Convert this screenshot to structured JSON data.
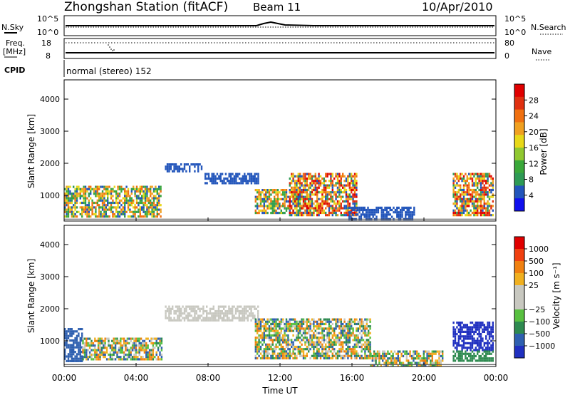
{
  "header": {
    "station_title": "Zhongshan Station (fitACF)",
    "beam": "Beam 11",
    "date": "10/Apr/2010"
  },
  "top_panels": {
    "nsky": {
      "label": "N.Sky",
      "tick_top": "10^5",
      "tick_bottom": "10^0"
    },
    "nsearch": {
      "label": "N.Search",
      "tick_top": "10^5",
      "tick_bottom": "10^0"
    },
    "freq": {
      "label_line1": "Freq.",
      "label_line2": "[MHz]",
      "tick_top": "18",
      "tick_bottom": "8"
    },
    "nave": {
      "label": "Nave",
      "tick_top": "80",
      "tick_bottom": "0"
    },
    "cpid": {
      "label": "CPID",
      "mode_text": "normal (stereo) 152"
    }
  },
  "chart_data": [
    {
      "type": "heatmap",
      "name": "power",
      "ylabel": "Slant Range [km]",
      "xlabel": "",
      "xlim": [
        0,
        24
      ],
      "ylim": [
        200,
        4600
      ],
      "yticks": [
        "1000",
        "2000",
        "3000",
        "4000"
      ],
      "colorbar": {
        "label": "Power [dB]",
        "ticks": [
          "4",
          "8",
          "12",
          "16",
          "20",
          "24",
          "28"
        ],
        "colors": [
          "#1010ee",
          "#2255bb",
          "#2e9a55",
          "#3aa83a",
          "#90c830",
          "#e8d818",
          "#f0a020",
          "#f07010",
          "#e03010",
          "#e00000"
        ]
      },
      "patches": [
        {
          "t": [
            0.0,
            5.4
          ],
          "r": [
            350,
            1300
          ],
          "c": "mix1"
        },
        {
          "t": [
            5.6,
            7.6
          ],
          "r": [
            1750,
            2000
          ],
          "c": "#2255bb"
        },
        {
          "t": [
            7.8,
            10.8
          ],
          "r": [
            1400,
            1700
          ],
          "c": "#2255bb"
        },
        {
          "t": [
            10.6,
            13.5
          ],
          "r": [
            450,
            1200
          ],
          "c": "mix1"
        },
        {
          "t": [
            12.5,
            16.3
          ],
          "r": [
            400,
            1700
          ],
          "c": "mix2"
        },
        {
          "t": [
            15.8,
            19.5
          ],
          "r": [
            250,
            650
          ],
          "c": "#2255bb"
        },
        {
          "t": [
            21.6,
            23.8
          ],
          "r": [
            400,
            1700
          ],
          "c": "mix2"
        }
      ]
    },
    {
      "type": "heatmap",
      "name": "velocity",
      "ylabel": "Slant Range [km]",
      "xlabel": "Time UT",
      "xlim": [
        0,
        24
      ],
      "ylim": [
        200,
        4600
      ],
      "xticks": [
        "00:00",
        "04:00",
        "08:00",
        "12:00",
        "16:00",
        "20:00",
        "00:00"
      ],
      "yticks": [
        "1000",
        "2000",
        "3000",
        "4000"
      ],
      "colorbar": {
        "label": "Velocity [m s⁻¹]",
        "ticks": [
          "1000",
          "500",
          "100",
          "25",
          "−25",
          "−100",
          "−500",
          "−1000"
        ],
        "colors": [
          "#2030c0",
          "#2f60b0",
          "#2e8a50",
          "#58c040",
          "#c8c8c0",
          "#c8c8c0",
          "#f0b020",
          "#f08010",
          "#f04010",
          "#e00000"
        ]
      },
      "patches": [
        {
          "t": [
            0.0,
            1.0
          ],
          "r": [
            400,
            1400
          ],
          "c": "#2f60b0"
        },
        {
          "t": [
            1.0,
            5.4
          ],
          "r": [
            400,
            1100
          ],
          "c": "mixv"
        },
        {
          "t": [
            5.6,
            10.8
          ],
          "r": [
            1650,
            2100
          ],
          "c": "#c8c8c0"
        },
        {
          "t": [
            10.6,
            17.0
          ],
          "r": [
            450,
            1700
          ],
          "c": "mixv"
        },
        {
          "t": [
            17.0,
            21.0
          ],
          "r": [
            250,
            700
          ],
          "c": "mixv"
        },
        {
          "t": [
            21.6,
            23.8
          ],
          "r": [
            700,
            1600
          ],
          "c": "#2030c0"
        },
        {
          "t": [
            21.6,
            23.8
          ],
          "r": [
            350,
            700
          ],
          "c": "#2e8a50"
        }
      ]
    }
  ]
}
